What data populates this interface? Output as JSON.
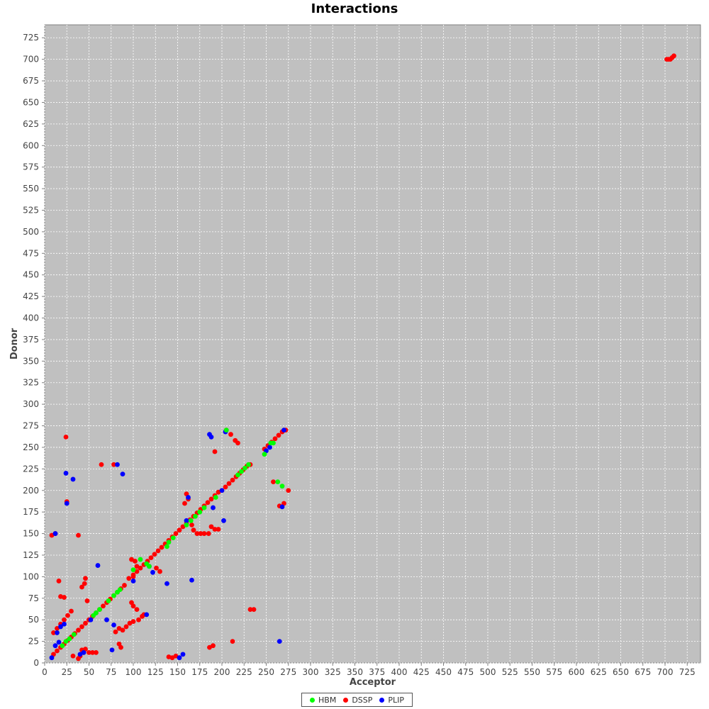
{
  "chart_data": {
    "type": "scatter",
    "title": "Interactions",
    "xlabel": "Acceptor",
    "ylabel": "Donor",
    "xlim": [
      0,
      740
    ],
    "ylim": [
      0,
      740
    ],
    "xticks": [
      0,
      25,
      50,
      75,
      100,
      125,
      150,
      175,
      200,
      225,
      250,
      275,
      300,
      325,
      350,
      375,
      400,
      425,
      450,
      475,
      500,
      525,
      550,
      575,
      600,
      625,
      650,
      675,
      700,
      725
    ],
    "yticks": [
      0,
      25,
      50,
      75,
      100,
      125,
      150,
      175,
      200,
      225,
      250,
      275,
      300,
      325,
      350,
      375,
      400,
      425,
      450,
      475,
      500,
      525,
      550,
      575,
      600,
      625,
      650,
      675,
      700,
      725
    ],
    "grid": true,
    "legend_position": "bottom",
    "plot_background": "#c0c0c0",
    "series": [
      {
        "name": "HBM",
        "color": "#00ff00",
        "points": [
          [
            20,
            20
          ],
          [
            24,
            25
          ],
          [
            28,
            28
          ],
          [
            33,
            33
          ],
          [
            55,
            55
          ],
          [
            58,
            58
          ],
          [
            62,
            62
          ],
          [
            72,
            72
          ],
          [
            78,
            78
          ],
          [
            82,
            82
          ],
          [
            85,
            85
          ],
          [
            100,
            108
          ],
          [
            108,
            120
          ],
          [
            115,
            115
          ],
          [
            118,
            112
          ],
          [
            140,
            140
          ],
          [
            145,
            145
          ],
          [
            138,
            135
          ],
          [
            160,
            160
          ],
          [
            165,
            165
          ],
          [
            170,
            170
          ],
          [
            175,
            175
          ],
          [
            180,
            180
          ],
          [
            193,
            192
          ],
          [
            205,
            270
          ],
          [
            218,
            218
          ],
          [
            222,
            222
          ],
          [
            226,
            226
          ],
          [
            230,
            230
          ],
          [
            248,
            242
          ],
          [
            255,
            255
          ],
          [
            258,
            255
          ],
          [
            263,
            210
          ],
          [
            268,
            205
          ]
        ]
      },
      {
        "name": "DSSP",
        "color": "#ff0000",
        "points": [
          [
            10,
            10
          ],
          [
            14,
            14
          ],
          [
            18,
            18
          ],
          [
            22,
            22
          ],
          [
            26,
            26
          ],
          [
            30,
            30
          ],
          [
            34,
            34
          ],
          [
            38,
            38
          ],
          [
            42,
            42
          ],
          [
            46,
            46
          ],
          [
            50,
            50
          ],
          [
            54,
            54
          ],
          [
            58,
            58
          ],
          [
            62,
            62
          ],
          [
            66,
            66
          ],
          [
            70,
            70
          ],
          [
            74,
            74
          ],
          [
            78,
            78
          ],
          [
            82,
            82
          ],
          [
            86,
            86
          ],
          [
            90,
            90
          ],
          [
            95,
            98
          ],
          [
            100,
            102
          ],
          [
            104,
            106
          ],
          [
            108,
            110
          ],
          [
            112,
            114
          ],
          [
            116,
            118
          ],
          [
            120,
            122
          ],
          [
            124,
            126
          ],
          [
            128,
            130
          ],
          [
            132,
            134
          ],
          [
            136,
            138
          ],
          [
            140,
            142
          ],
          [
            144,
            146
          ],
          [
            148,
            150
          ],
          [
            152,
            154
          ],
          [
            156,
            158
          ],
          [
            160,
            162
          ],
          [
            164,
            166
          ],
          [
            168,
            170
          ],
          [
            172,
            174
          ],
          [
            176,
            178
          ],
          [
            180,
            182
          ],
          [
            184,
            186
          ],
          [
            188,
            190
          ],
          [
            192,
            194
          ],
          [
            196,
            198
          ],
          [
            200,
            200
          ],
          [
            204,
            204
          ],
          [
            208,
            208
          ],
          [
            212,
            212
          ],
          [
            216,
            216
          ],
          [
            220,
            220
          ],
          [
            224,
            224
          ],
          [
            228,
            228
          ],
          [
            232,
            230
          ],
          [
            248,
            248
          ],
          [
            252,
            252
          ],
          [
            256,
            256
          ],
          [
            260,
            260
          ],
          [
            264,
            264
          ],
          [
            268,
            268
          ],
          [
            272,
            270
          ],
          [
            10,
            35
          ],
          [
            14,
            40
          ],
          [
            18,
            45
          ],
          [
            22,
            50
          ],
          [
            26,
            55
          ],
          [
            30,
            60
          ],
          [
            8,
            148
          ],
          [
            12,
            150
          ],
          [
            16,
            95
          ],
          [
            18,
            77
          ],
          [
            22,
            76
          ],
          [
            24,
            262
          ],
          [
            25,
            187
          ],
          [
            38,
            148
          ],
          [
            42,
            88
          ],
          [
            45,
            92
          ],
          [
            46,
            98
          ],
          [
            48,
            72
          ],
          [
            42,
            15
          ],
          [
            44,
            12
          ],
          [
            46,
            16
          ],
          [
            32,
            8
          ],
          [
            38,
            5
          ],
          [
            40,
            8
          ],
          [
            50,
            12
          ],
          [
            54,
            12
          ],
          [
            58,
            12
          ],
          [
            64,
            230
          ],
          [
            78,
            230
          ],
          [
            84,
            22
          ],
          [
            86,
            18
          ],
          [
            80,
            36
          ],
          [
            84,
            40
          ],
          [
            88,
            38
          ],
          [
            92,
            42
          ],
          [
            96,
            46
          ],
          [
            100,
            48
          ],
          [
            98,
            120
          ],
          [
            102,
            118
          ],
          [
            104,
            112
          ],
          [
            100,
            100
          ],
          [
            106,
            50
          ],
          [
            110,
            54
          ],
          [
            98,
            70
          ],
          [
            100,
            66
          ],
          [
            104,
            62
          ],
          [
            112,
            56
          ],
          [
            126,
            110
          ],
          [
            130,
            106
          ],
          [
            140,
            7
          ],
          [
            144,
            6
          ],
          [
            148,
            8
          ],
          [
            158,
            185
          ],
          [
            160,
            196
          ],
          [
            162,
            190
          ],
          [
            166,
            160
          ],
          [
            168,
            154
          ],
          [
            172,
            150
          ],
          [
            176,
            150
          ],
          [
            180,
            150
          ],
          [
            185,
            150
          ],
          [
            188,
            158
          ],
          [
            192,
            155
          ],
          [
            196,
            155
          ],
          [
            186,
            18
          ],
          [
            190,
            20
          ],
          [
            192,
            245
          ],
          [
            205,
            270
          ],
          [
            210,
            265
          ],
          [
            215,
            258
          ],
          [
            218,
            255
          ],
          [
            232,
            62
          ],
          [
            236,
            62
          ],
          [
            212,
            25
          ],
          [
            258,
            210
          ],
          [
            265,
            182
          ],
          [
            270,
            185
          ],
          [
            275,
            200
          ],
          [
            706,
            700
          ],
          [
            708,
            702
          ],
          [
            704,
            700
          ],
          [
            710,
            704
          ],
          [
            702,
            700
          ]
        ]
      },
      {
        "name": "PLIP",
        "color": "#0000ff",
        "points": [
          [
            8,
            6
          ],
          [
            12,
            20
          ],
          [
            16,
            24
          ],
          [
            18,
            42
          ],
          [
            22,
            45
          ],
          [
            24,
            220
          ],
          [
            25,
            185
          ],
          [
            32,
            213
          ],
          [
            40,
            10
          ],
          [
            44,
            12
          ],
          [
            52,
            50
          ],
          [
            60,
            113
          ],
          [
            70,
            50
          ],
          [
            76,
            15
          ],
          [
            78,
            44
          ],
          [
            82,
            230
          ],
          [
            88,
            219
          ],
          [
            100,
            95
          ],
          [
            115,
            56
          ],
          [
            118,
            112
          ],
          [
            122,
            105
          ],
          [
            138,
            92
          ],
          [
            152,
            6
          ],
          [
            156,
            10
          ],
          [
            160,
            165
          ],
          [
            162,
            192
          ],
          [
            166,
            96
          ],
          [
            186,
            265
          ],
          [
            188,
            262
          ],
          [
            190,
            180
          ],
          [
            200,
            200
          ],
          [
            202,
            165
          ],
          [
            204,
            268
          ],
          [
            250,
            246
          ],
          [
            254,
            250
          ],
          [
            265,
            25
          ],
          [
            268,
            181
          ],
          [
            270,
            270
          ],
          [
            12,
            150
          ],
          [
            14,
            35
          ]
        ]
      }
    ]
  },
  "legend": {
    "items": [
      {
        "label": "HBM",
        "color": "#00ff00"
      },
      {
        "label": "DSSP",
        "color": "#ff0000"
      },
      {
        "label": "PLIP",
        "color": "#0000ff"
      }
    ]
  }
}
